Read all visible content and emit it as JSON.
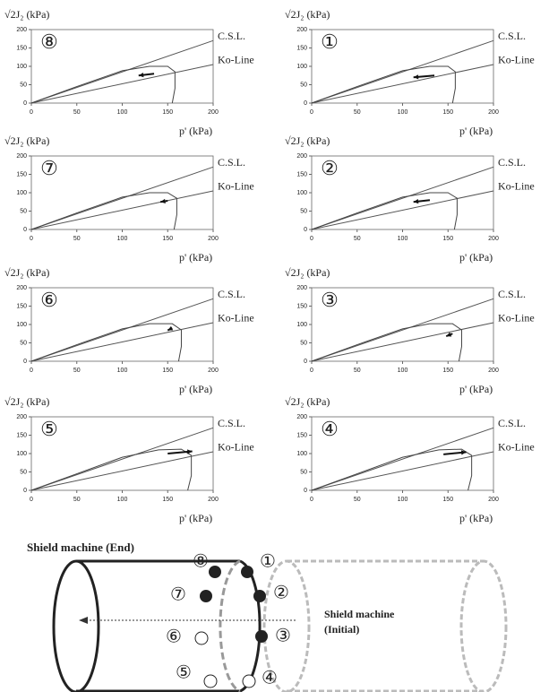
{
  "chart_data": [
    {
      "type": "line",
      "title": "⑧",
      "y_label": "√2J₂ (kPa)",
      "x_label": "p' (kPa)",
      "xlim": [
        0,
        200
      ],
      "ylim": [
        0,
        200
      ],
      "xticks": [
        0,
        50,
        100,
        150,
        200
      ],
      "yticks": [
        0,
        50,
        100,
        150,
        200
      ],
      "series": [
        {
          "name": "C.S.L.",
          "color": "#555555",
          "x": [
            0,
            200
          ],
          "values": [
            0,
            170
          ]
        },
        {
          "name": "Ko-Line",
          "color": "#555555",
          "x": [
            0,
            200
          ],
          "values": [
            0,
            105
          ]
        }
      ],
      "path": {
        "x": [
          0,
          50,
          100,
          130,
          150,
          158,
          158,
          155
        ],
        "values": [
          0,
          45,
          88,
          100,
          100,
          85,
          40,
          0
        ]
      },
      "arrow": {
        "x": [
          135,
          118
        ],
        "values": [
          80,
          75
        ]
      }
    },
    {
      "type": "line",
      "title": "①",
      "y_label": "√2J₂ (kPa)",
      "x_label": "p' (kPa)",
      "xlim": [
        0,
        200
      ],
      "ylim": [
        0,
        200
      ],
      "xticks": [
        0,
        50,
        100,
        150,
        200
      ],
      "yticks": [
        0,
        50,
        100,
        150,
        200
      ],
      "series": [
        {
          "name": "C.S.L.",
          "color": "#555555",
          "x": [
            0,
            200
          ],
          "values": [
            0,
            170
          ]
        },
        {
          "name": "Ko-Line",
          "color": "#555555",
          "x": [
            0,
            200
          ],
          "values": [
            0,
            105
          ]
        }
      ],
      "path": {
        "x": [
          0,
          50,
          100,
          130,
          150,
          158,
          158,
          155
        ],
        "values": [
          0,
          45,
          88,
          100,
          100,
          85,
          40,
          0
        ]
      },
      "arrow": {
        "x": [
          135,
          112
        ],
        "values": [
          75,
          70
        ]
      }
    },
    {
      "type": "line",
      "title": "⑦",
      "y_label": "√2J₂ (kPa)",
      "x_label": "p' (kPa)",
      "xlim": [
        0,
        200
      ],
      "ylim": [
        0,
        200
      ],
      "xticks": [
        0,
        50,
        100,
        150,
        200
      ],
      "yticks": [
        0,
        50,
        100,
        150,
        200
      ],
      "series": [
        {
          "name": "C.S.L.",
          "color": "#555555",
          "x": [
            0,
            200
          ],
          "values": [
            0,
            170
          ]
        },
        {
          "name": "Ko-Line",
          "color": "#555555",
          "x": [
            0,
            200
          ],
          "values": [
            0,
            105
          ]
        }
      ],
      "path": {
        "x": [
          0,
          50,
          100,
          130,
          150,
          160,
          160,
          157
        ],
        "values": [
          0,
          45,
          88,
          100,
          100,
          85,
          40,
          0
        ]
      },
      "arrow": {
        "x": [
          150,
          142
        ],
        "values": [
          78,
          75
        ]
      }
    },
    {
      "type": "line",
      "title": "②",
      "y_label": "√2J₂ (kPa)",
      "x_label": "p' (kPa)",
      "xlim": [
        0,
        200
      ],
      "ylim": [
        0,
        200
      ],
      "xticks": [
        0,
        50,
        100,
        150,
        200
      ],
      "yticks": [
        0,
        50,
        100,
        150,
        200
      ],
      "series": [
        {
          "name": "C.S.L.",
          "color": "#555555",
          "x": [
            0,
            200
          ],
          "values": [
            0,
            170
          ]
        },
        {
          "name": "Ko-Line",
          "color": "#555555",
          "x": [
            0,
            200
          ],
          "values": [
            0,
            105
          ]
        }
      ],
      "path": {
        "x": [
          0,
          50,
          100,
          130,
          150,
          160,
          160,
          157
        ],
        "values": [
          0,
          45,
          88,
          100,
          100,
          85,
          40,
          0
        ]
      },
      "arrow": {
        "x": [
          130,
          112
        ],
        "values": [
          80,
          75
        ]
      }
    },
    {
      "type": "line",
      "title": "⑥",
      "y_label": "√2J₂ (kPa)",
      "x_label": "p' (kPa)",
      "xlim": [
        0,
        200
      ],
      "ylim": [
        0,
        200
      ],
      "xticks": [
        0,
        50,
        100,
        150,
        200
      ],
      "yticks": [
        0,
        50,
        100,
        150,
        200
      ],
      "series": [
        {
          "name": "C.S.L.",
          "color": "#555555",
          "x": [
            0,
            200
          ],
          "values": [
            0,
            170
          ]
        },
        {
          "name": "Ko-Line",
          "color": "#555555",
          "x": [
            0,
            200
          ],
          "values": [
            0,
            105
          ]
        }
      ],
      "path": {
        "x": [
          0,
          50,
          100,
          130,
          155,
          165,
          165,
          162
        ],
        "values": [
          0,
          45,
          88,
          102,
          102,
          85,
          40,
          0
        ]
      },
      "arrow": {
        "x": [
          155,
          150
        ],
        "values": [
          90,
          84
        ]
      }
    },
    {
      "type": "line",
      "title": "③",
      "y_label": "√2J₂ (kPa)",
      "x_label": "p' (kPa)",
      "xlim": [
        0,
        200
      ],
      "ylim": [
        0,
        200
      ],
      "xticks": [
        0,
        50,
        100,
        150,
        200
      ],
      "yticks": [
        0,
        50,
        100,
        150,
        200
      ],
      "series": [
        {
          "name": "C.S.L.",
          "color": "#555555",
          "x": [
            0,
            200
          ],
          "values": [
            0,
            170
          ]
        },
        {
          "name": "Ko-Line",
          "color": "#555555",
          "x": [
            0,
            200
          ],
          "values": [
            0,
            105
          ]
        }
      ],
      "path": {
        "x": [
          0,
          50,
          100,
          130,
          155,
          165,
          165,
          162
        ],
        "values": [
          0,
          45,
          88,
          102,
          102,
          85,
          40,
          0
        ]
      },
      "arrow": {
        "x": [
          155,
          148
        ],
        "values": [
          75,
          68
        ]
      }
    },
    {
      "type": "line",
      "title": "⑤",
      "y_label": "√2J₂ (kPa)",
      "x_label": "p' (kPa)",
      "xlim": [
        0,
        200
      ],
      "ylim": [
        0,
        200
      ],
      "xticks": [
        0,
        50,
        100,
        150,
        200
      ],
      "yticks": [
        0,
        50,
        100,
        150,
        200
      ],
      "series": [
        {
          "name": "C.S.L.",
          "color": "#555555",
          "x": [
            0,
            200
          ],
          "values": [
            0,
            170
          ]
        },
        {
          "name": "Ko-Line",
          "color": "#555555",
          "x": [
            0,
            200
          ],
          "values": [
            0,
            105
          ]
        }
      ],
      "path": {
        "x": [
          0,
          50,
          100,
          140,
          165,
          176,
          176,
          172
        ],
        "values": [
          0,
          45,
          90,
          110,
          112,
          95,
          40,
          0
        ]
      },
      "arrow": {
        "x": [
          150,
          177
        ],
        "values": [
          100,
          106
        ]
      }
    },
    {
      "type": "line",
      "title": "④",
      "y_label": "√2J₂ (kPa)",
      "x_label": "p' (kPa)",
      "xlim": [
        0,
        200
      ],
      "ylim": [
        0,
        200
      ],
      "xticks": [
        0,
        50,
        100,
        150,
        200
      ],
      "yticks": [
        0,
        50,
        100,
        150,
        200
      ],
      "series": [
        {
          "name": "C.S.L.",
          "color": "#555555",
          "x": [
            0,
            200
          ],
          "values": [
            0,
            170
          ]
        },
        {
          "name": "Ko-Line",
          "color": "#555555",
          "x": [
            0,
            200
          ],
          "values": [
            0,
            105
          ]
        }
      ],
      "path": {
        "x": [
          0,
          50,
          100,
          140,
          165,
          176,
          176,
          172
        ],
        "values": [
          0,
          45,
          90,
          110,
          112,
          95,
          40,
          0
        ]
      },
      "arrow": {
        "x": [
          145,
          170
        ],
        "values": [
          98,
          104
        ]
      }
    }
  ],
  "diagram": {
    "end_label": "Shield machine (End)",
    "initial_label": [
      "Shield machine",
      "(Initial)"
    ],
    "points": [
      "⑧",
      "①",
      "⑦",
      "②",
      "⑥",
      "③",
      "⑤",
      "④"
    ]
  }
}
